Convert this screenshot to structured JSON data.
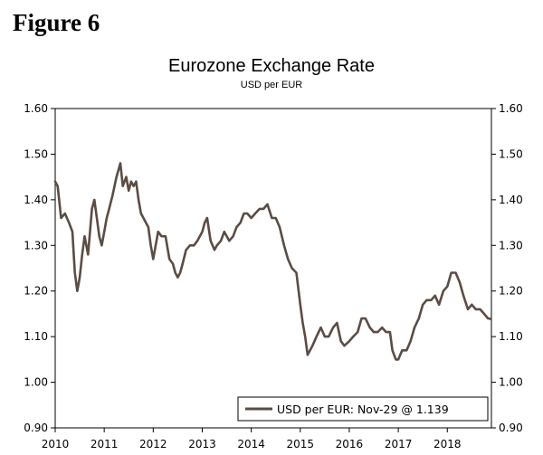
{
  "figure_label": "Figure 6",
  "colors": {
    "series": "#5b4c44",
    "axis": "#000000",
    "background": "#ffffff"
  },
  "chart_data": {
    "type": "line",
    "title": "Eurozone Exchange Rate",
    "subtitle": "USD per EUR",
    "xlabel": "",
    "ylabel": "",
    "xlim": [
      2010.0,
      2018.9
    ],
    "ylim": [
      0.9,
      1.6
    ],
    "y_ticks": [
      "0.90",
      "1.00",
      "1.10",
      "1.20",
      "1.30",
      "1.40",
      "1.50",
      "1.60"
    ],
    "x_ticks": [
      "2010",
      "2011",
      "2012",
      "2013",
      "2014",
      "2015",
      "2016",
      "2017",
      "2018"
    ],
    "grid": false,
    "legend": {
      "position": "bottom-right",
      "text": "USD per EUR: Nov-29 @ 1.139"
    },
    "series": [
      {
        "name": "USD per EUR",
        "x": [
          2010.0,
          2010.05,
          2010.12,
          2010.2,
          2010.28,
          2010.35,
          2010.4,
          2010.45,
          2010.5,
          2010.55,
          2010.6,
          2010.67,
          2010.75,
          2010.8,
          2010.85,
          2010.9,
          2010.95,
          2011.0,
          2011.05,
          2011.1,
          2011.17,
          2011.25,
          2011.33,
          2011.38,
          2011.45,
          2011.5,
          2011.55,
          2011.6,
          2011.65,
          2011.7,
          2011.75,
          2011.8,
          2011.85,
          2011.9,
          2011.95,
          2012.0,
          2012.05,
          2012.1,
          2012.17,
          2012.25,
          2012.33,
          2012.4,
          2012.45,
          2012.5,
          2012.55,
          2012.6,
          2012.67,
          2012.75,
          2012.83,
          2012.9,
          2013.0,
          2013.05,
          2013.1,
          2013.17,
          2013.25,
          2013.3,
          2013.38,
          2013.45,
          2013.5,
          2013.55,
          2013.63,
          2013.7,
          2013.78,
          2013.85,
          2013.92,
          2014.0,
          2014.08,
          2014.17,
          2014.25,
          2014.33,
          2014.42,
          2014.5,
          2014.58,
          2014.67,
          2014.75,
          2014.83,
          2014.92,
          2015.0,
          2015.05,
          2015.1,
          2015.15,
          2015.2,
          2015.25,
          2015.33,
          2015.42,
          2015.5,
          2015.58,
          2015.67,
          2015.75,
          2015.83,
          2015.9,
          2016.0,
          2016.08,
          2016.17,
          2016.25,
          2016.33,
          2016.42,
          2016.5,
          2016.58,
          2016.67,
          2016.75,
          2016.83,
          2016.88,
          2016.95,
          2017.0,
          2017.08,
          2017.17,
          2017.25,
          2017.33,
          2017.42,
          2017.5,
          2017.58,
          2017.67,
          2017.75,
          2017.83,
          2017.92,
          2018.0,
          2018.08,
          2018.17,
          2018.25,
          2018.33,
          2018.42,
          2018.5,
          2018.58,
          2018.67,
          2018.75,
          2018.83,
          2018.88
        ],
        "values": [
          1.44,
          1.43,
          1.36,
          1.37,
          1.35,
          1.33,
          1.24,
          1.2,
          1.23,
          1.28,
          1.32,
          1.28,
          1.38,
          1.4,
          1.36,
          1.32,
          1.3,
          1.33,
          1.36,
          1.38,
          1.41,
          1.45,
          1.48,
          1.43,
          1.45,
          1.42,
          1.44,
          1.43,
          1.44,
          1.4,
          1.37,
          1.36,
          1.35,
          1.34,
          1.3,
          1.27,
          1.3,
          1.33,
          1.32,
          1.32,
          1.27,
          1.26,
          1.24,
          1.23,
          1.24,
          1.26,
          1.29,
          1.3,
          1.3,
          1.31,
          1.33,
          1.35,
          1.36,
          1.31,
          1.29,
          1.3,
          1.31,
          1.33,
          1.32,
          1.31,
          1.32,
          1.34,
          1.35,
          1.37,
          1.37,
          1.36,
          1.37,
          1.38,
          1.38,
          1.39,
          1.36,
          1.36,
          1.34,
          1.3,
          1.27,
          1.25,
          1.24,
          1.17,
          1.13,
          1.1,
          1.06,
          1.07,
          1.08,
          1.1,
          1.12,
          1.1,
          1.1,
          1.12,
          1.13,
          1.09,
          1.08,
          1.09,
          1.1,
          1.11,
          1.14,
          1.14,
          1.12,
          1.11,
          1.11,
          1.12,
          1.11,
          1.11,
          1.07,
          1.05,
          1.05,
          1.07,
          1.07,
          1.09,
          1.12,
          1.14,
          1.17,
          1.18,
          1.18,
          1.19,
          1.17,
          1.2,
          1.21,
          1.24,
          1.24,
          1.22,
          1.19,
          1.16,
          1.17,
          1.16,
          1.16,
          1.15,
          1.14,
          1.139
        ]
      }
    ]
  }
}
